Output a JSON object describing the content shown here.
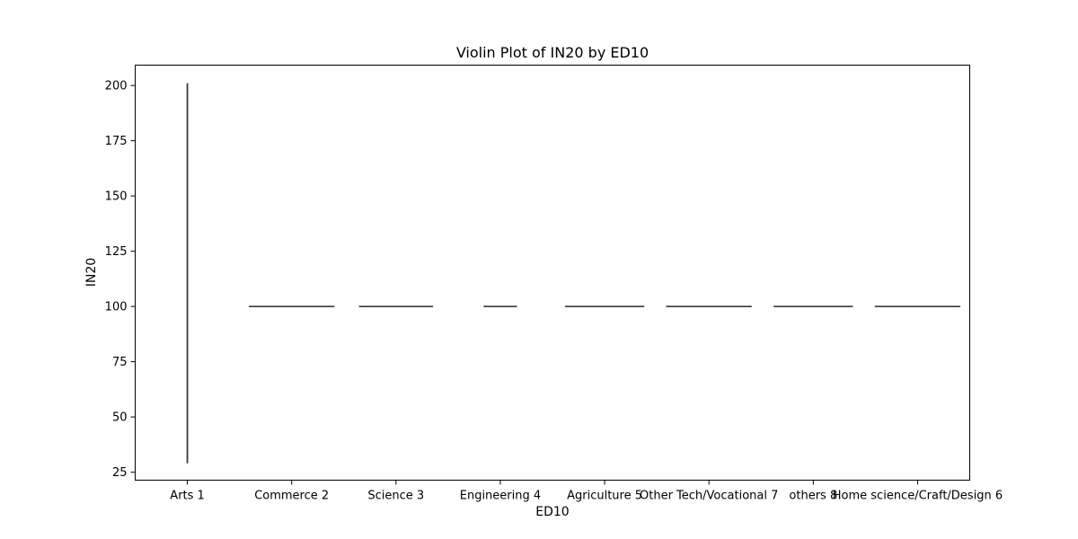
{
  "chart_data": {
    "type": "violin",
    "title": "Violin Plot of IN20 by ED10",
    "xlabel": "ED10",
    "ylabel": "IN20",
    "categories": [
      "Arts 1",
      "Commerce 2",
      "Science 3",
      "Engineering 4",
      "Agriculture 5",
      "Other Tech/Vocational 7",
      "others 8",
      "Home science/Craft/Design 6"
    ],
    "yticks": [
      25,
      50,
      75,
      100,
      125,
      150,
      175,
      200
    ],
    "ylim": [
      21.4,
      209.2
    ],
    "violins": [
      {
        "category": "Arts 1",
        "min": 29,
        "max": 201,
        "width": 0.01
      },
      {
        "category": "Commerce 2",
        "min": 100,
        "max": 100,
        "width": 0.82
      },
      {
        "category": "Science 3",
        "min": 100,
        "max": 100,
        "width": 0.71
      },
      {
        "category": "Engineering 4",
        "min": 100,
        "max": 100,
        "width": 0.32
      },
      {
        "category": "Agriculture 5",
        "min": 100,
        "max": 100,
        "width": 0.76
      },
      {
        "category": "Other Tech/Vocational 7",
        "min": 100,
        "max": 100,
        "width": 0.82
      },
      {
        "category": "others 8",
        "min": 100,
        "max": 100,
        "width": 0.76
      },
      {
        "category": "Home science/Craft/Design 6",
        "min": 100,
        "max": 100,
        "width": 0.82
      }
    ],
    "grid": false,
    "legend": "none",
    "color": "#3a3a3a"
  }
}
